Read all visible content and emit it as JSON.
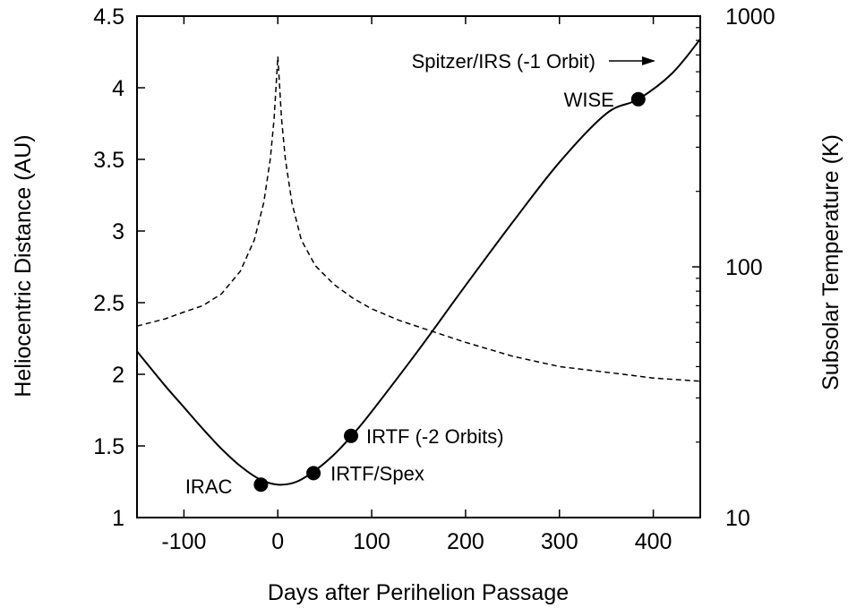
{
  "chart_data": {
    "type": "line",
    "xlabel": "Days after Perihelion Passage",
    "ylabel": "Heliocentric Distance (AU)",
    "y2label": "Subsolar Temperature (K)",
    "xlim": [
      -150,
      450
    ],
    "ylim": [
      1,
      4.5
    ],
    "y2lim": [
      10,
      1000
    ],
    "y2scale": "log",
    "grid": false,
    "x_ticks": [
      -100,
      0,
      100,
      200,
      300,
      400
    ],
    "y_ticks": [
      1,
      1.5,
      2,
      2.5,
      3,
      3.5,
      4,
      4.5
    ],
    "y2_ticks": [
      10,
      100,
      1000
    ],
    "series": [
      {
        "style": "solid",
        "axis": "left",
        "x": [
          -150,
          -120,
          -100,
          -80,
          -60,
          -40,
          -20,
          0,
          20,
          40,
          60,
          80,
          100,
          150,
          200,
          250,
          300,
          350,
          384,
          420,
          450
        ],
        "values": [
          2.16,
          1.92,
          1.77,
          1.62,
          1.48,
          1.36,
          1.27,
          1.23,
          1.25,
          1.33,
          1.44,
          1.58,
          1.74,
          2.17,
          2.62,
          3.06,
          3.48,
          3.82,
          3.92,
          4.1,
          4.34
        ]
      },
      {
        "style": "dashed",
        "axis": "right",
        "x": [
          -150,
          -120,
          -100,
          -80,
          -60,
          -40,
          -25,
          -15,
          -8,
          -4,
          0,
          4,
          8,
          15,
          25,
          40,
          60,
          80,
          100,
          130,
          160,
          200,
          250,
          300,
          350,
          400,
          450
        ],
        "values": [
          58,
          62,
          66,
          70,
          78,
          96,
          128,
          180,
          270,
          390,
          690,
          390,
          270,
          180,
          128,
          101,
          85,
          75,
          68,
          61,
          56,
          50,
          44,
          40,
          38,
          36,
          35
        ]
      }
    ],
    "points": [
      {
        "label": "IRAC",
        "x": -18,
        "y": 1.23
      },
      {
        "label": "IRTF/Spex",
        "x": 38,
        "y": 1.31
      },
      {
        "label": "IRTF (-2 Orbits)",
        "x": 78,
        "y": 1.57
      },
      {
        "label": "WISE",
        "x": 384,
        "y": 3.92
      }
    ],
    "annotations": [
      {
        "text": "Spitzer/IRS (-1 Orbit)",
        "arrow": "right"
      }
    ]
  }
}
